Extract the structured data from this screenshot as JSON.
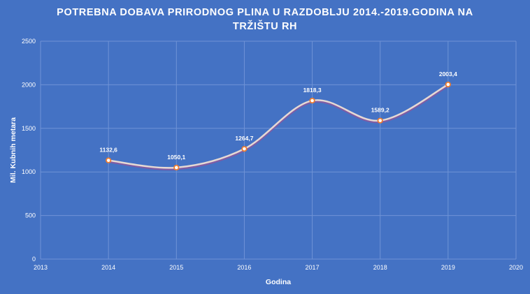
{
  "chart_data": {
    "type": "line",
    "title_lines": [
      "POTREBNA DOBAVA PRIRODNOG PLINA U RAZDOBLJU 2014.-2019.GODINA NA",
      "TRŽIŠTU RH"
    ],
    "xlabel": "Godina",
    "ylabel": "Mil. Kubnih metara",
    "xlim": [
      2013,
      2020
    ],
    "ylim": [
      0,
      2500
    ],
    "x_ticks": [
      "2013",
      "2014",
      "2015",
      "2016",
      "2017",
      "2018",
      "2019",
      "2020"
    ],
    "y_ticks": [
      "0",
      "500",
      "1000",
      "1500",
      "2000",
      "2500"
    ],
    "grid": true,
    "smooth": true,
    "series": [
      {
        "x": [
          2014,
          2015,
          2016,
          2017,
          2018,
          2019
        ],
        "y": [
          1132.6,
          1050.1,
          1264.7,
          1818.3,
          1589.2,
          2003.4
        ],
        "labels": [
          "1132,6",
          "1050,1",
          "1264,7",
          "1818,3",
          "1589,2",
          "2003,4"
        ]
      }
    ],
    "colors": {
      "background": "#4472c4",
      "gridline": "#6f93d6",
      "line": "#e6d9d4",
      "marker_fill": "#ffffff",
      "marker_stroke": "#ed7d31",
      "text": "#ffffff"
    }
  }
}
